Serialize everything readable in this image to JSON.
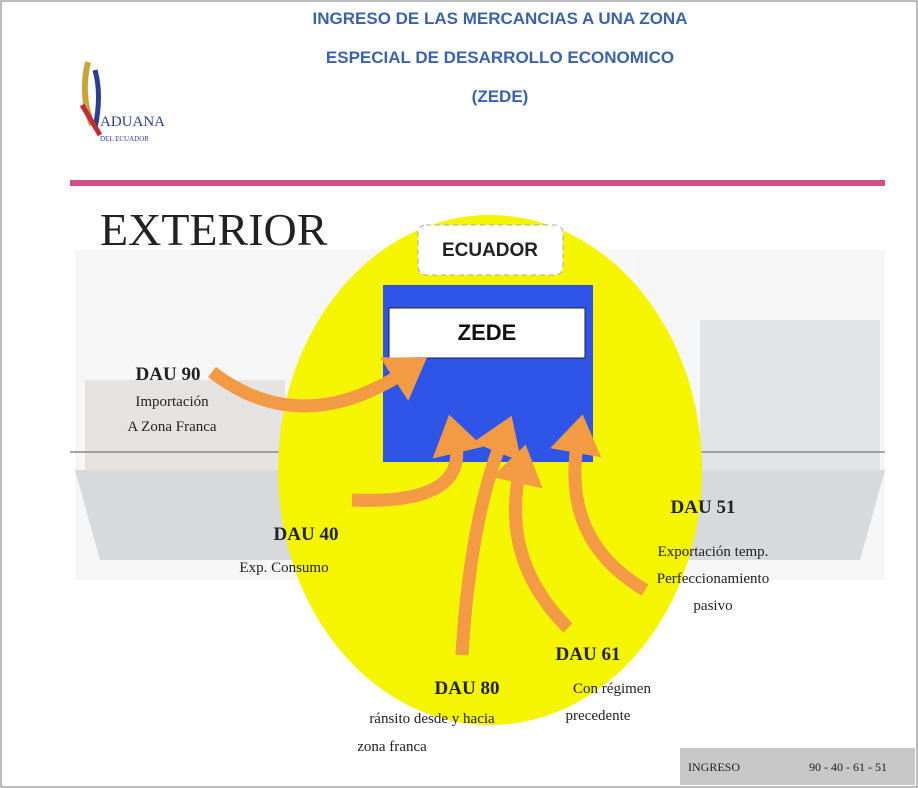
{
  "header": {
    "title_lines": [
      "INGRESO DE LAS MERCANCIAS A UNA ZONA",
      "ESPECIAL DE DESARROLLO ECONOMICO",
      "(ZEDE)"
    ]
  },
  "logo": {
    "name": "ADUANA",
    "subtitle": "DEL ECUADOR"
  },
  "diagram": {
    "outside_label": "EXTERIOR",
    "country_label": "ECUADOR",
    "zone_label": "ZEDE",
    "flows": [
      {
        "code": "DAU 90",
        "description": [
          "Importación",
          "A Zona Franca"
        ]
      },
      {
        "code": "DAU 40",
        "description": [
          "Exp. Consumo"
        ]
      },
      {
        "code": "DAU 51",
        "description": [
          "Exportación temp.",
          "Perfeccionamiento",
          "pasivo"
        ]
      },
      {
        "code": "DAU 80",
        "description": [
          "ránsito desde y hacia",
          "zona franca"
        ]
      },
      {
        "code": "DAU 61",
        "description": [
          "Con régimen",
          "precedente"
        ]
      }
    ]
  },
  "footer": {
    "label": "INGRESO",
    "codes": "90 - 40 - 61 - 51"
  }
}
